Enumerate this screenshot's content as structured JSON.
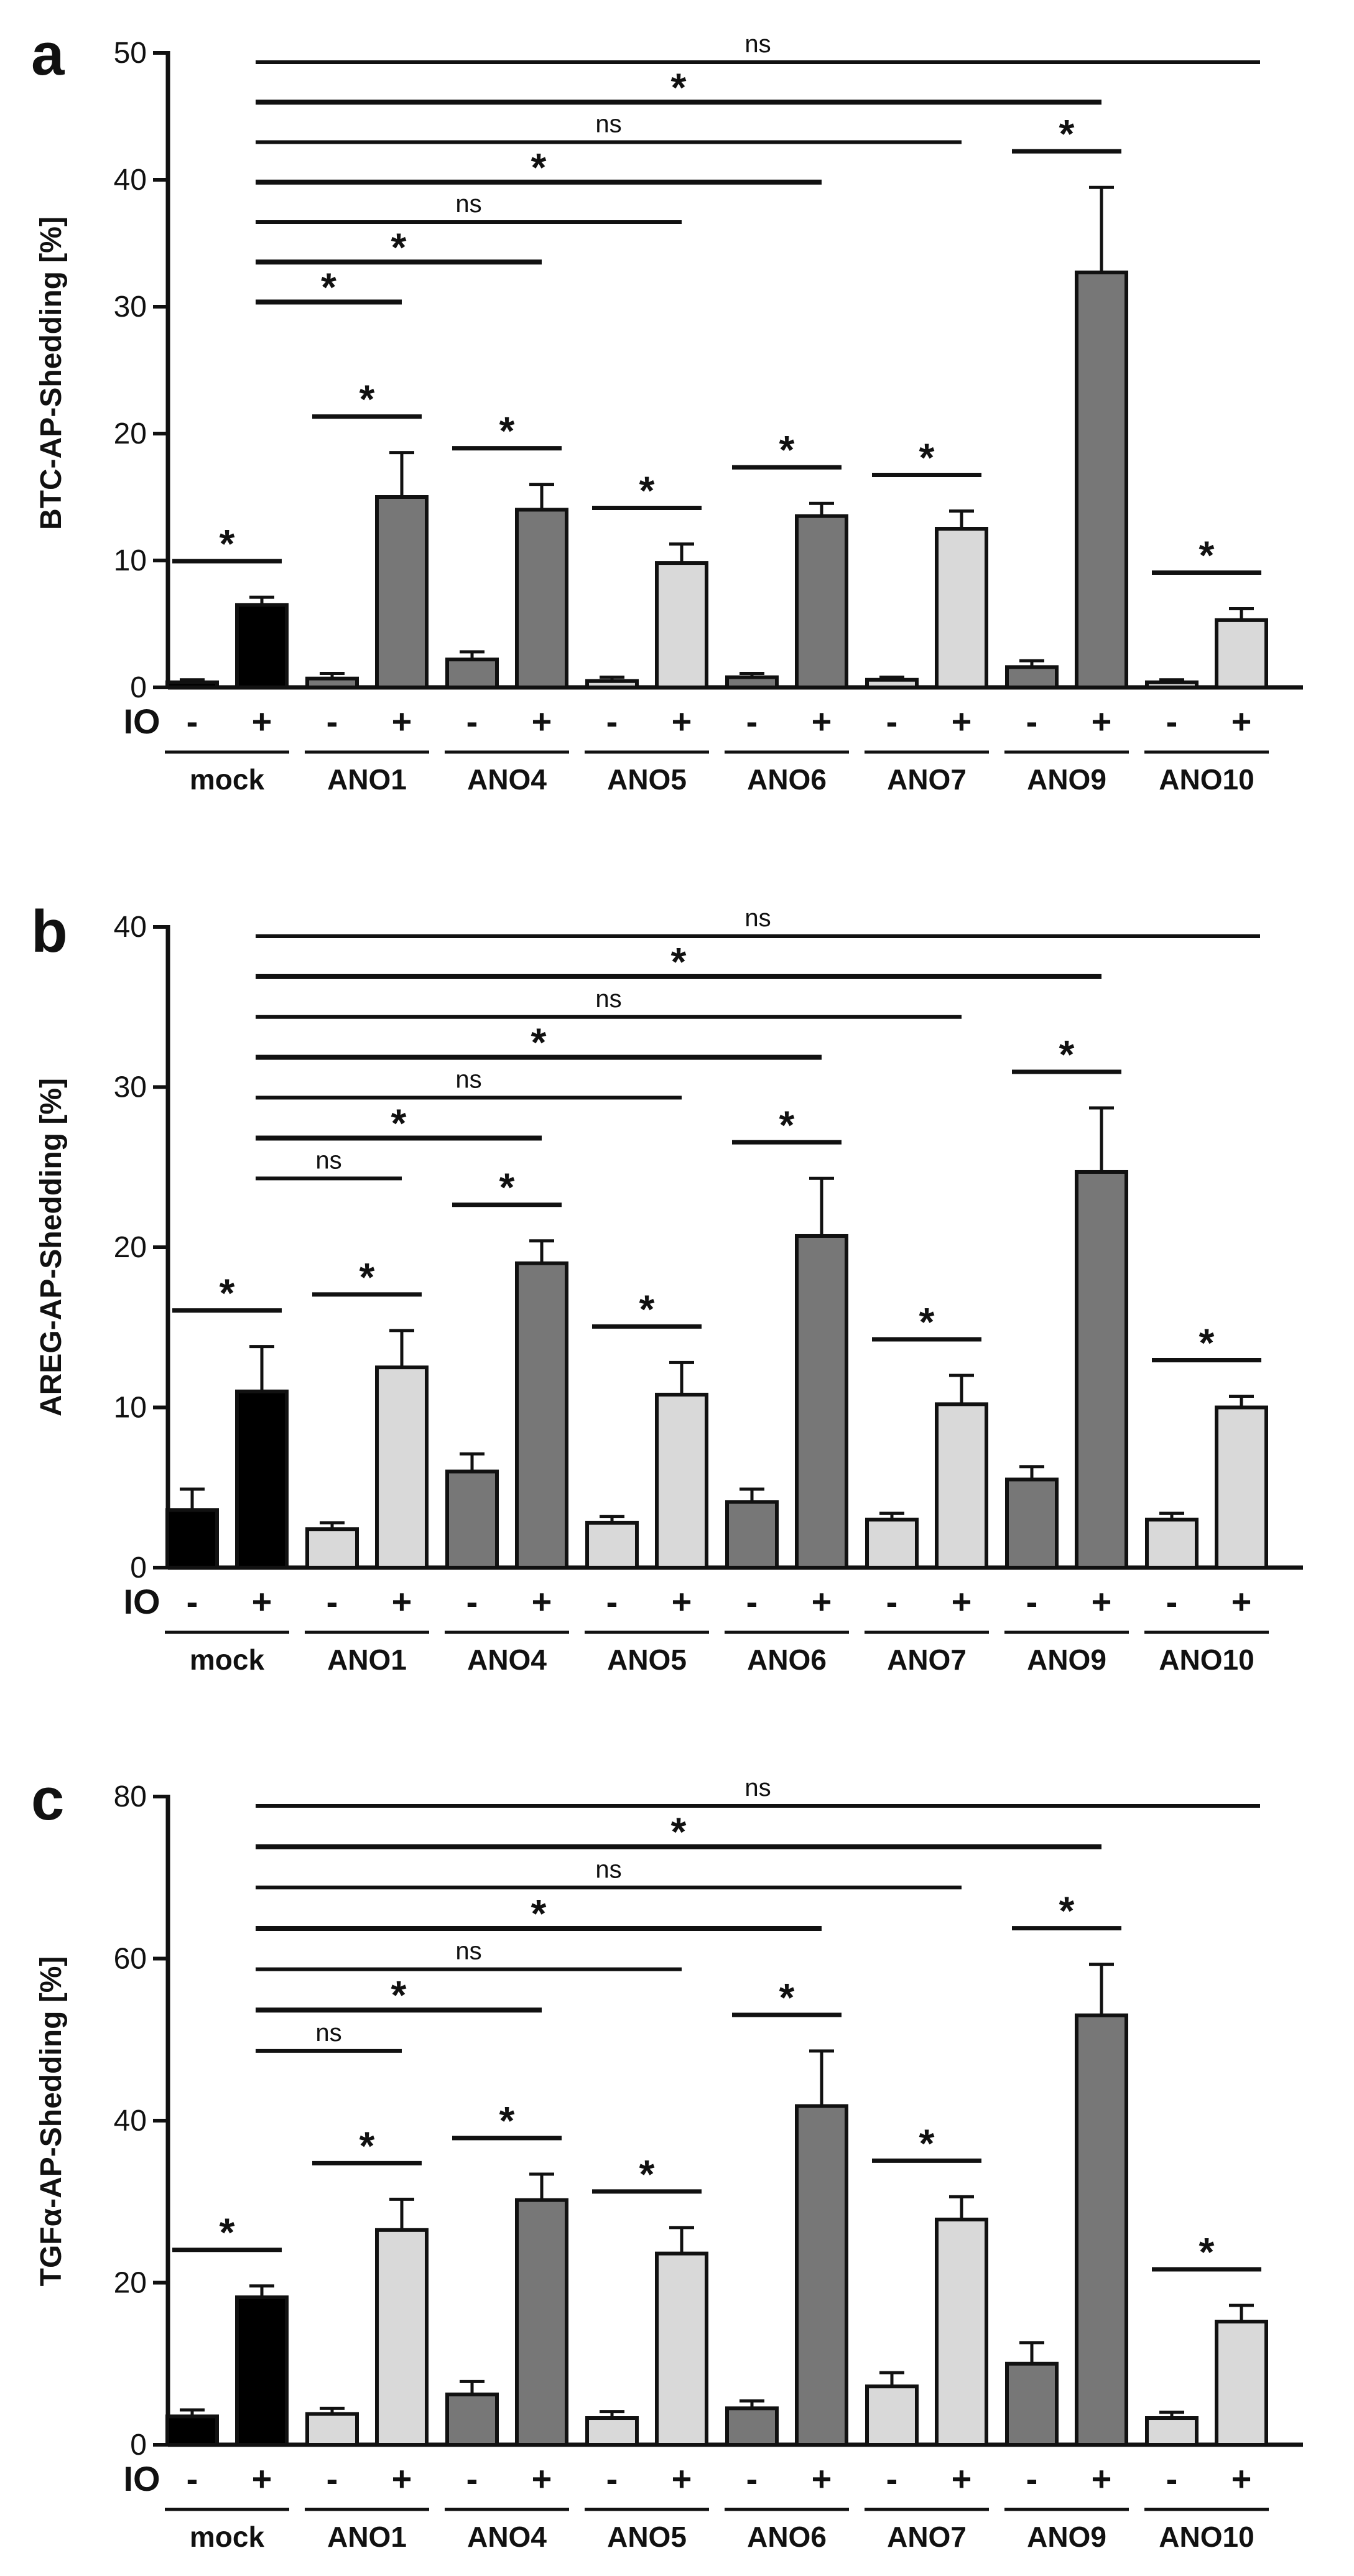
{
  "chart_data": [
    {
      "type": "bar",
      "panel": "a",
      "ylabel": "BTC-AP-Shedding [%]",
      "ylim": [
        0,
        50
      ],
      "yticks": [
        0,
        10,
        20,
        30,
        40,
        50
      ],
      "condition_label": "IO",
      "conditions": [
        "-",
        "+"
      ],
      "groups": [
        "mock",
        "ANO1",
        "ANO4",
        "ANO5",
        "ANO6",
        "ANO7",
        "ANO9",
        "ANO10"
      ],
      "colors": {
        "mock": "#000000",
        "ANO1": "#777777",
        "ANO4": "#777777",
        "ANO5": "#d9d9d9",
        "ANO6": "#777777",
        "ANO7": "#d9d9d9",
        "ANO9": "#777777",
        "ANO10": "#d9d9d9"
      },
      "series": [
        {
          "name": "-",
          "values": [
            0.4,
            0.7,
            2.2,
            0.5,
            0.8,
            0.6,
            1.6,
            0.4
          ],
          "errors": [
            0.2,
            0.4,
            0.6,
            0.3,
            0.3,
            0.2,
            0.5,
            0.2
          ]
        },
        {
          "name": "+",
          "values": [
            6.5,
            15.0,
            14.0,
            9.8,
            13.5,
            12.5,
            32.7,
            5.3
          ],
          "errors": [
            0.6,
            3.5,
            2.0,
            1.5,
            1.0,
            1.4,
            6.7,
            0.9
          ]
        }
      ],
      "pair_significance": [
        "*",
        "*",
        "*",
        "*",
        "*",
        "*",
        "*",
        "*"
      ],
      "mock_comparisons": [
        {
          "target": "ANO1",
          "label": "*"
        },
        {
          "target": "ANO4",
          "label": "*"
        },
        {
          "target": "ANO5",
          "label": "ns"
        },
        {
          "target": "ANO6",
          "label": "*"
        },
        {
          "target": "ANO7",
          "label": "ns"
        },
        {
          "target": "ANO9",
          "label": "*"
        },
        {
          "target": "ANO10",
          "label": "ns"
        }
      ]
    },
    {
      "type": "bar",
      "panel": "b",
      "ylabel": "AREG-AP-Shedding [%]",
      "ylim": [
        0,
        40
      ],
      "yticks": [
        0,
        10,
        20,
        30,
        40
      ],
      "condition_label": "IO",
      "conditions": [
        "-",
        "+"
      ],
      "groups": [
        "mock",
        "ANO1",
        "ANO4",
        "ANO5",
        "ANO6",
        "ANO7",
        "ANO9",
        "ANO10"
      ],
      "colors": {
        "mock": "#000000",
        "ANO1": "#d9d9d9",
        "ANO4": "#777777",
        "ANO5": "#d9d9d9",
        "ANO6": "#777777",
        "ANO7": "#d9d9d9",
        "ANO9": "#777777",
        "ANO10": "#d9d9d9"
      },
      "series": [
        {
          "name": "-",
          "values": [
            3.6,
            2.4,
            6.0,
            2.8,
            4.1,
            3.0,
            5.5,
            3.0
          ],
          "errors": [
            1.3,
            0.4,
            1.1,
            0.4,
            0.8,
            0.4,
            0.8,
            0.4
          ]
        },
        {
          "name": "+",
          "values": [
            11.0,
            12.5,
            19.0,
            10.8,
            20.7,
            10.2,
            24.7,
            10.0
          ],
          "errors": [
            2.8,
            2.3,
            1.4,
            2.0,
            3.6,
            1.8,
            4.0,
            0.7
          ]
        }
      ],
      "pair_significance": [
        "*",
        "*",
        "*",
        "*",
        "*",
        "*",
        "*",
        "*"
      ],
      "mock_comparisons": [
        {
          "target": "ANO1",
          "label": "ns"
        },
        {
          "target": "ANO4",
          "label": "*"
        },
        {
          "target": "ANO5",
          "label": "ns"
        },
        {
          "target": "ANO6",
          "label": "*"
        },
        {
          "target": "ANO7",
          "label": "ns"
        },
        {
          "target": "ANO9",
          "label": "*"
        },
        {
          "target": "ANO10",
          "label": "ns"
        }
      ]
    },
    {
      "type": "bar",
      "panel": "c",
      "ylabel": "TGFα-AP-Shedding [%]",
      "ylim": [
        0,
        80
      ],
      "yticks": [
        0,
        20,
        40,
        60,
        80
      ],
      "condition_label": "IO",
      "conditions": [
        "-",
        "+"
      ],
      "groups": [
        "mock",
        "ANO1",
        "ANO4",
        "ANO5",
        "ANO6",
        "ANO7",
        "ANO9",
        "ANO10"
      ],
      "colors": {
        "mock": "#000000",
        "ANO1": "#d9d9d9",
        "ANO4": "#777777",
        "ANO5": "#d9d9d9",
        "ANO6": "#777777",
        "ANO7": "#d9d9d9",
        "ANO9": "#777777",
        "ANO10": "#d9d9d9"
      },
      "series": [
        {
          "name": "-",
          "values": [
            3.5,
            3.8,
            6.2,
            3.3,
            4.5,
            7.2,
            10.0,
            3.3
          ],
          "errors": [
            0.8,
            0.7,
            1.6,
            0.8,
            0.9,
            1.7,
            2.6,
            0.7
          ]
        },
        {
          "name": "+",
          "values": [
            18.2,
            26.5,
            30.2,
            23.6,
            41.8,
            27.8,
            53.0,
            15.2
          ],
          "errors": [
            1.4,
            3.8,
            3.2,
            3.2,
            6.8,
            2.8,
            6.3,
            2.0
          ]
        }
      ],
      "pair_significance": [
        "*",
        "*",
        "*",
        "*",
        "*",
        "*",
        "*",
        "*"
      ],
      "mock_comparisons": [
        {
          "target": "ANO1",
          "label": "ns"
        },
        {
          "target": "ANO4",
          "label": "*"
        },
        {
          "target": "ANO5",
          "label": "ns"
        },
        {
          "target": "ANO6",
          "label": "*"
        },
        {
          "target": "ANO7",
          "label": "ns"
        },
        {
          "target": "ANO9",
          "label": "*"
        },
        {
          "target": "ANO10",
          "label": "ns"
        }
      ]
    }
  ]
}
